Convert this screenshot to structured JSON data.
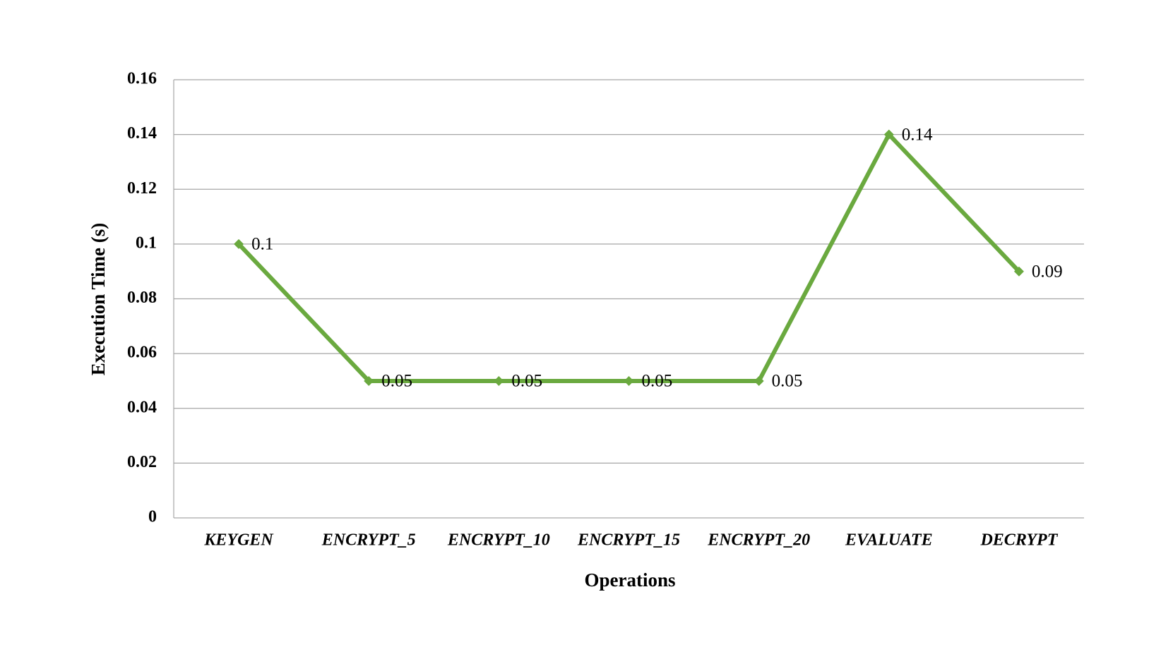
{
  "chart_data": {
    "type": "line",
    "x_label": "Operations",
    "y_label": "Execution Time (s)",
    "categories": [
      "KEYGEN",
      "ENCRYPT_5",
      "ENCRYPT_10",
      "ENCRYPT_15",
      "ENCRYPT_20",
      "EVALUATE",
      "DECRYPT"
    ],
    "series": [
      {
        "name": "Execution Time",
        "color": "#6aa93f",
        "values": [
          0.1,
          0.05,
          0.05,
          0.05,
          0.05,
          0.14,
          0.09
        ]
      }
    ],
    "ylim": [
      0,
      0.16
    ],
    "yticks": [
      0,
      0.02,
      0.04,
      0.06,
      0.08,
      0.1,
      0.12,
      0.14,
      0.16
    ],
    "grid": true,
    "legend": false
  }
}
